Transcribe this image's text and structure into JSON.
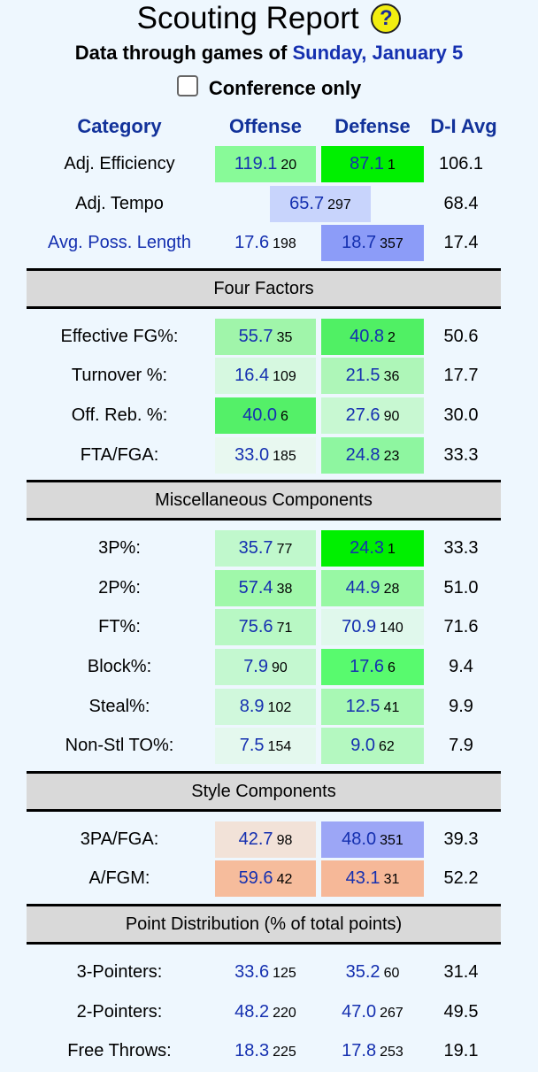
{
  "title": "Scouting Report",
  "help_icon": "?",
  "subtitle_prefix": "Data through games of",
  "subtitle_date": "Sunday, January 5",
  "conference_only_label": "Conference only",
  "conference_only_checked": false,
  "headers": {
    "category": "Category",
    "offense": "Offense",
    "defense": "Defense",
    "avg": "D-I Avg"
  },
  "sections": [
    {
      "title": null,
      "rows": [
        {
          "label": "Adj. Efficiency",
          "off": {
            "v": "119.1",
            "r": "20",
            "bg": "#88fa98"
          },
          "def": {
            "v": "87.1",
            "r": "1",
            "bg": "#00f000"
          },
          "avg": "106.1"
        },
        {
          "label": "Adj. Tempo",
          "mid": {
            "v": "65.7",
            "r": "297",
            "bg": "#c8d4fc"
          },
          "avg": "68.4"
        },
        {
          "label": "Avg. Poss. Length",
          "link": true,
          "off": {
            "v": "17.6",
            "r": "198",
            "bg": null
          },
          "def": {
            "v": "18.7",
            "r": "357",
            "bg": "#8c9cf8"
          },
          "avg": "17.4"
        }
      ]
    },
    {
      "title": "Four Factors",
      "rows": [
        {
          "label": "Effective FG%:",
          "off": {
            "v": "55.7",
            "r": "35",
            "bg": "#a0f5aa"
          },
          "def": {
            "v": "40.8",
            "r": "2",
            "bg": "#50f064"
          },
          "avg": "50.6"
        },
        {
          "label": "Turnover %:",
          "off": {
            "v": "16.4",
            "r": "109",
            "bg": "#d6f8e0"
          },
          "def": {
            "v": "21.5",
            "r": "36",
            "bg": "#aef6b8"
          },
          "avg": "17.7"
        },
        {
          "label": "Off. Reb. %:",
          "off": {
            "v": "40.0",
            "r": "6",
            "bg": "#54f068"
          },
          "def": {
            "v": "27.6",
            "r": "90",
            "bg": "#c8f8d2"
          },
          "avg": "30.0"
        },
        {
          "label": "FTA/FGA:",
          "off": {
            "v": "33.0",
            "r": "185",
            "bg": "#e8f8f0"
          },
          "def": {
            "v": "24.8",
            "r": "23",
            "bg": "#8ef6a0"
          },
          "avg": "33.3"
        }
      ]
    },
    {
      "title": "Miscellaneous Components",
      "rows": [
        {
          "label": "3P%:",
          "off": {
            "v": "35.7",
            "r": "77",
            "bg": "#c0f8cc"
          },
          "def": {
            "v": "24.3",
            "r": "1",
            "bg": "#00f000"
          },
          "avg": "33.3"
        },
        {
          "label": "2P%:",
          "off": {
            "v": "57.4",
            "r": "38",
            "bg": "#a0f8aa"
          },
          "def": {
            "v": "44.9",
            "r": "28",
            "bg": "#98f8a4"
          },
          "avg": "51.0"
        },
        {
          "label": "FT%:",
          "off": {
            "v": "75.6",
            "r": "71",
            "bg": "#b8f8c4"
          },
          "def": {
            "v": "70.9",
            "r": "140",
            "bg": "#e0f8ec"
          },
          "avg": "71.6"
        },
        {
          "label": "Block%:",
          "off": {
            "v": "7.9",
            "r": "90",
            "bg": "#c4f8d0"
          },
          "def": {
            "v": "17.6",
            "r": "6",
            "bg": "#58fa6e"
          },
          "avg": "9.4"
        },
        {
          "label": "Steal%:",
          "off": {
            "v": "8.9",
            "r": "102",
            "bg": "#d0f8dc"
          },
          "def": {
            "v": "12.5",
            "r": "41",
            "bg": "#a8f8b4"
          },
          "avg": "9.9"
        },
        {
          "label": "Non-Stl TO%:",
          "off": {
            "v": "7.5",
            "r": "154",
            "bg": "#e4f8ee"
          },
          "def": {
            "v": "9.0",
            "r": "62",
            "bg": "#b4f8c0"
          },
          "avg": "7.9"
        }
      ]
    },
    {
      "title": "Style Components",
      "rows": [
        {
          "label": "3PA/FGA:",
          "off": {
            "v": "42.7",
            "r": "98",
            "bg": "#f2e2d8"
          },
          "def": {
            "v": "48.0",
            "r": "351",
            "bg": "#9ca6f6"
          },
          "avg": "39.3"
        },
        {
          "label": "A/FGM:",
          "off": {
            "v": "59.6",
            "r": "42",
            "bg": "#f6bc9c"
          },
          "def": {
            "v": "43.1",
            "r": "31",
            "bg": "#f6b898"
          },
          "avg": "52.2"
        }
      ]
    },
    {
      "title": "Point Distribution (% of total points)",
      "rows": [
        {
          "label": "3-Pointers:",
          "off": {
            "v": "33.6",
            "r": "125",
            "bg": null
          },
          "def": {
            "v": "35.2",
            "r": "60",
            "bg": null
          },
          "avg": "31.4"
        },
        {
          "label": "2-Pointers:",
          "off": {
            "v": "48.2",
            "r": "220",
            "bg": null
          },
          "def": {
            "v": "47.0",
            "r": "267",
            "bg": null
          },
          "avg": "49.5"
        },
        {
          "label": "Free Throws:",
          "off": {
            "v": "18.3",
            "r": "225",
            "bg": null
          },
          "def": {
            "v": "17.8",
            "r": "253",
            "bg": null
          },
          "avg": "19.1"
        }
      ]
    }
  ]
}
